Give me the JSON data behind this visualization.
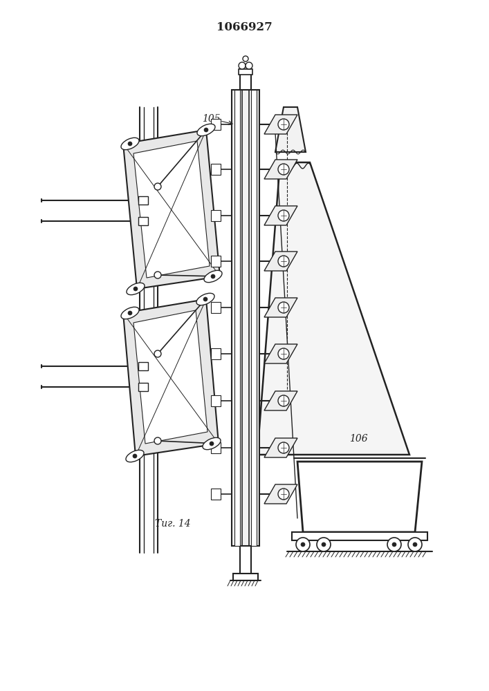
{
  "title": "1066927",
  "fig_label": "Τиг. 14",
  "label_105": "105",
  "label_106": "106",
  "bg_color": "#ffffff",
  "line_color": "#222222",
  "title_fontsize": 12,
  "fig_label_fontsize": 10
}
